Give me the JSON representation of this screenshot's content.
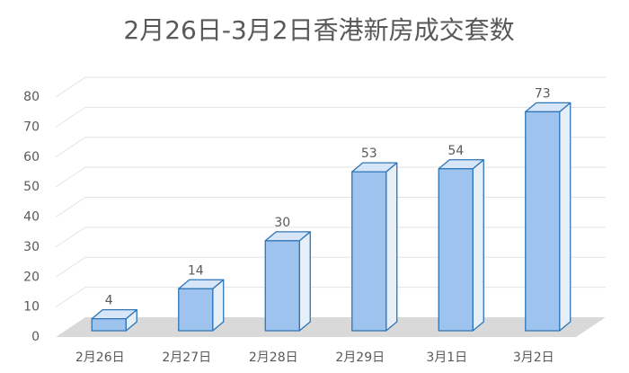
{
  "chart_data": {
    "type": "bar3d",
    "title": "2月26日-3月2日香港新房成交套数",
    "categories": [
      "2月26日",
      "2月27日",
      "2月28日",
      "2月29日",
      "3月1日",
      "3月2日"
    ],
    "values": [
      4,
      14,
      30,
      53,
      54,
      73
    ],
    "color": "#9dc3ee",
    "edge_color": "#2e75b6",
    "ylim": [
      0,
      80
    ],
    "yticks": [
      0,
      10,
      20,
      30,
      40,
      50,
      60,
      70,
      80
    ],
    "grid": true
  }
}
